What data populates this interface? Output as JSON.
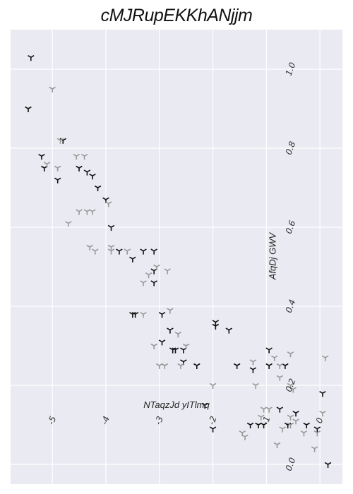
{
  "chart_data": {
    "type": "scatter",
    "title": "cMJRupEKKhANjjm",
    "xlabel": "NTaqzJd yITlmq",
    "ylabel": "AfqDj GWV",
    "xlim": [
      -5.78,
      0.42
    ],
    "ylim": [
      -0.05,
      1.1
    ],
    "x_ticks": [
      -5,
      -4,
      -3,
      -2,
      -1,
      0
    ],
    "y_ticks": [
      0.0,
      0.2,
      0.4,
      0.6,
      0.8,
      1.0
    ],
    "x_tick_labels": [
      "-5",
      "-4",
      "-3",
      "-2",
      "-1",
      "0"
    ],
    "y_tick_labels": [
      "0.0",
      "0.2",
      "0.4",
      "0.6",
      "0.8",
      "1.0"
    ],
    "grid": true,
    "background": "#eaeaf2",
    "marker": "tri_down",
    "series": [
      {
        "color": "#111111",
        "points": [
          [
            -5.4,
            1.03
          ],
          [
            -5.45,
            0.9
          ],
          [
            -5.2,
            0.78
          ],
          [
            -5.15,
            0.75
          ],
          [
            -4.9,
            0.72
          ],
          [
            -4.8,
            0.82
          ],
          [
            -4.5,
            0.75
          ],
          [
            -4.35,
            0.74
          ],
          [
            -4.25,
            0.73
          ],
          [
            -4.15,
            0.7
          ],
          [
            -4.0,
            0.67
          ],
          [
            -3.9,
            0.6
          ],
          [
            -3.75,
            0.54
          ],
          [
            -3.5,
            0.52
          ],
          [
            -3.3,
            0.54
          ],
          [
            -3.1,
            0.54
          ],
          [
            -3.1,
            0.49
          ],
          [
            -3.1,
            0.46
          ],
          [
            -3.5,
            0.38
          ],
          [
            -3.45,
            0.38
          ],
          [
            -2.95,
            0.38
          ],
          [
            -2.8,
            0.34
          ],
          [
            -2.95,
            0.31
          ],
          [
            -2.75,
            0.29
          ],
          [
            -2.7,
            0.29
          ],
          [
            -2.55,
            0.29
          ],
          [
            -2.55,
            0.26
          ],
          [
            -2.3,
            0.25
          ],
          [
            -1.95,
            0.36
          ],
          [
            -1.95,
            0.35
          ],
          [
            -1.7,
            0.34
          ],
          [
            -1.55,
            0.25
          ],
          [
            -1.25,
            0.24
          ],
          [
            -0.95,
            0.29
          ],
          [
            -0.95,
            0.25
          ],
          [
            -0.65,
            0.25
          ],
          [
            -0.75,
            0.14
          ],
          [
            -0.45,
            0.13
          ],
          [
            -0.6,
            0.1
          ],
          [
            -0.25,
            0.1
          ],
          [
            -0.05,
            0.09
          ],
          [
            0.05,
            0.18
          ],
          [
            0.15,
            0.0
          ],
          [
            -1.3,
            0.1
          ],
          [
            -1.15,
            0.1
          ],
          [
            -2.15,
            0.15
          ],
          [
            -2.0,
            0.09
          ],
          [
            -1.05,
            0.1
          ]
        ]
      },
      {
        "color": "#999999",
        "points": [
          [
            -5.0,
            0.95
          ],
          [
            -4.85,
            0.82
          ],
          [
            -5.1,
            0.76
          ],
          [
            -4.9,
            0.75
          ],
          [
            -4.55,
            0.78
          ],
          [
            -4.4,
            0.78
          ],
          [
            -4.5,
            0.64
          ],
          [
            -4.35,
            0.64
          ],
          [
            -4.25,
            0.64
          ],
          [
            -4.7,
            0.61
          ],
          [
            -3.95,
            0.66
          ],
          [
            -4.3,
            0.55
          ],
          [
            -4.2,
            0.54
          ],
          [
            -3.9,
            0.55
          ],
          [
            -3.9,
            0.54
          ],
          [
            -3.6,
            0.54
          ],
          [
            -3.2,
            0.48
          ],
          [
            -3.05,
            0.5
          ],
          [
            -2.85,
            0.49
          ],
          [
            -3.3,
            0.46
          ],
          [
            -3.3,
            0.38
          ],
          [
            -2.8,
            0.39
          ],
          [
            -3.1,
            0.3
          ],
          [
            -3.0,
            0.25
          ],
          [
            -2.9,
            0.25
          ],
          [
            -2.65,
            0.33
          ],
          [
            -2.5,
            0.3
          ],
          [
            -2.6,
            0.25
          ],
          [
            -2.0,
            0.2
          ],
          [
            -1.25,
            0.26
          ],
          [
            -1.2,
            0.2
          ],
          [
            -0.85,
            0.27
          ],
          [
            -0.75,
            0.25
          ],
          [
            -0.55,
            0.28
          ],
          [
            -0.75,
            0.22
          ],
          [
            -0.55,
            0.2
          ],
          [
            -0.5,
            0.19
          ],
          [
            -1.05,
            0.14
          ],
          [
            -0.55,
            0.12
          ],
          [
            -0.45,
            0.11
          ],
          [
            -0.55,
            0.1
          ],
          [
            -0.7,
            0.09
          ],
          [
            -0.3,
            0.08
          ],
          [
            -0.8,
            0.05
          ],
          [
            -0.05,
            0.08
          ],
          [
            -0.1,
            0.04
          ],
          [
            0.05,
            0.13
          ],
          [
            0.1,
            0.27
          ],
          [
            -1.45,
            0.08
          ],
          [
            -1.4,
            0.07
          ],
          [
            -1.1,
            0.12
          ],
          [
            -0.95,
            0.14
          ]
        ]
      }
    ]
  }
}
